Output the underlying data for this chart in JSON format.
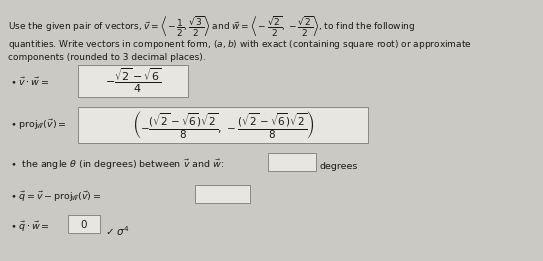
{
  "bg_color": "#cbc9c3",
  "text_color": "#1a1a1a",
  "box_color": "#e8e6e0",
  "box_edge": "#888888",
  "figsize": [
    5.43,
    2.61
  ],
  "dpi": 100
}
